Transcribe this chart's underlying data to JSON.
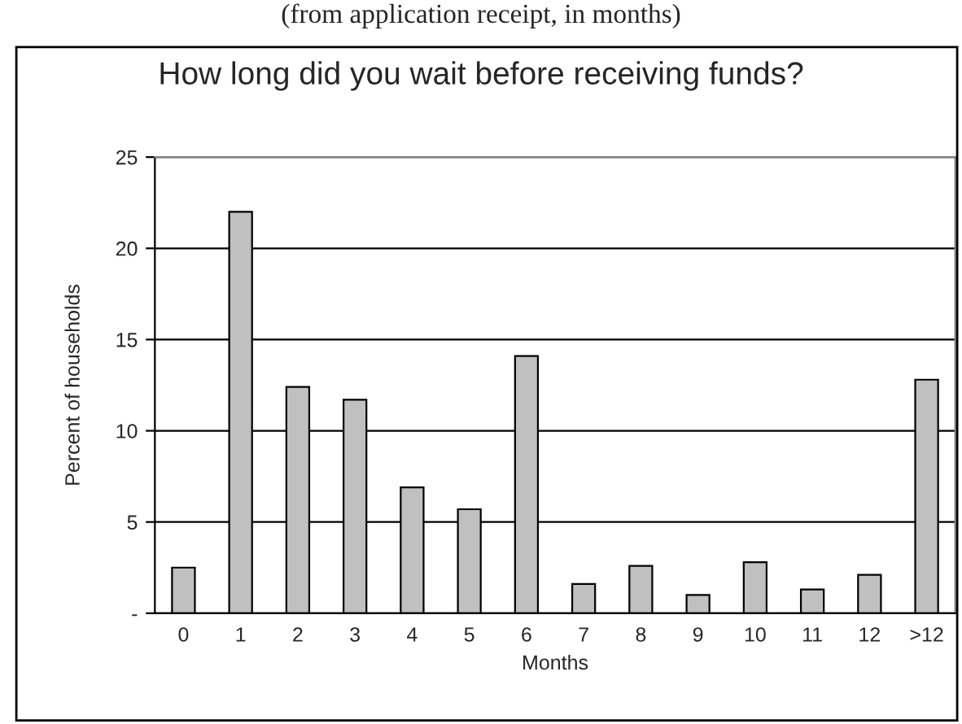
{
  "chart_data": {
    "type": "bar",
    "title": "How long did you wait before receiving funds?",
    "annotations": [
      "(from application receipt, in months)"
    ],
    "xlabel": "Months",
    "ylabel": "Percent of households",
    "categories": [
      "0",
      "1",
      "2",
      "3",
      "4",
      "5",
      "6",
      "7",
      "8",
      "9",
      "10",
      "11",
      "12",
      ">12"
    ],
    "values": [
      2.5,
      22,
      12.4,
      11.7,
      6.9,
      5.7,
      14.1,
      1.6,
      2.6,
      1.0,
      2.8,
      1.3,
      2.1,
      12.8
    ],
    "color": "#c0c0c0",
    "ylim": [
      0,
      25
    ],
    "yticks": [
      {
        "value": 0,
        "label": "-"
      },
      5,
      10,
      15,
      20,
      25
    ],
    "grid": "y"
  }
}
